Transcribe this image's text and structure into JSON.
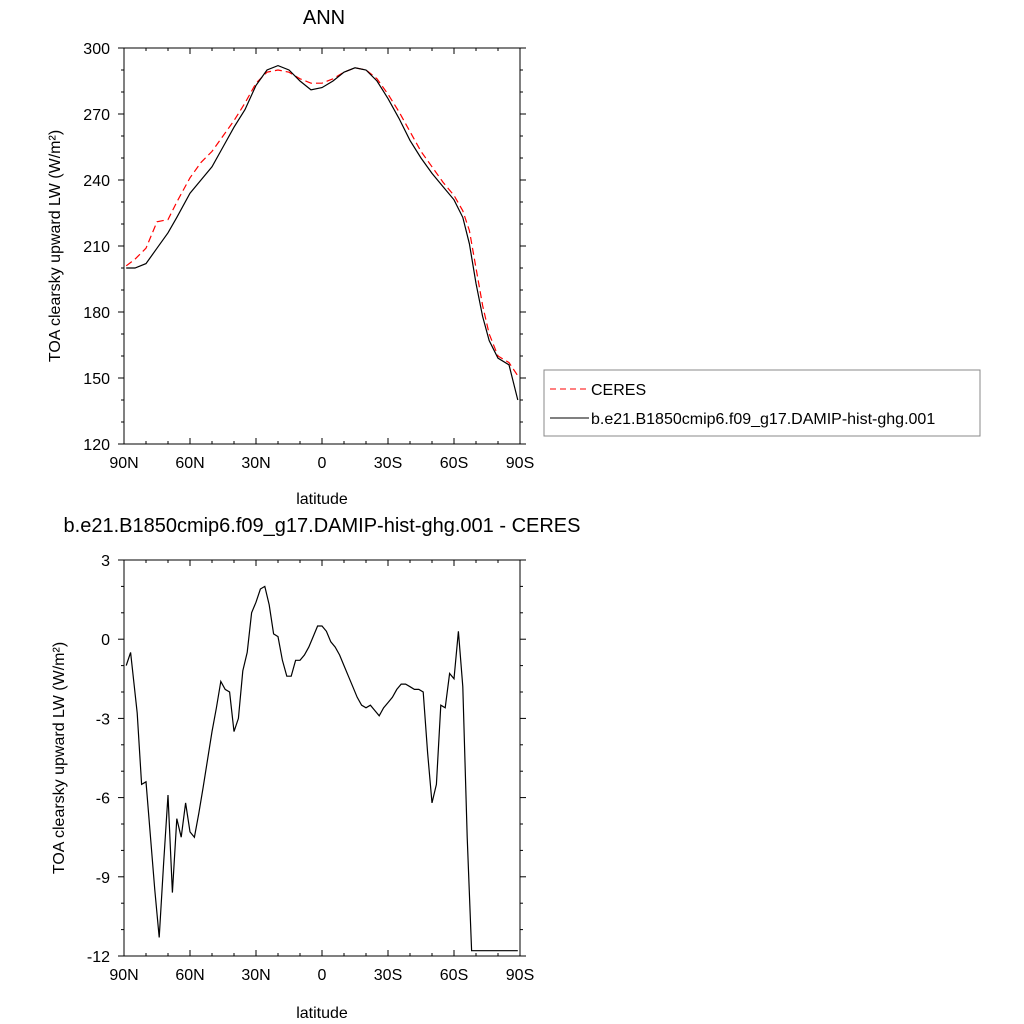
{
  "chart_data": [
    {
      "type": "line",
      "title": "ANN",
      "xlabel": "latitude",
      "ylabel": "TOA clearsky upward LW (W/m²)",
      "xlim": [
        90,
        -90
      ],
      "ylim": [
        120,
        300
      ],
      "xticks": [
        90,
        60,
        30,
        0,
        -30,
        -60,
        -90
      ],
      "xticklabels": [
        "90N",
        "60N",
        "30N",
        "0",
        "30S",
        "60S",
        "90S"
      ],
      "yticks": [
        120,
        150,
        180,
        210,
        240,
        270,
        300
      ],
      "yticklabels": [
        "120",
        "150",
        "180",
        "210",
        "240",
        "270",
        "300"
      ],
      "legend": {
        "placement": "right",
        "entries": [
          "CERES",
          "b.e21.B1850cmip6.f09_g17.DAMIP-hist-ghg.001"
        ]
      },
      "series": [
        {
          "name": "CERES",
          "color": "#ff0000",
          "style": "dashed",
          "x": [
            89,
            85,
            80,
            75,
            70,
            66,
            60,
            55,
            50,
            45,
            40,
            35,
            30,
            25,
            20,
            15,
            10,
            5,
            0,
            -5,
            -10,
            -15,
            -20,
            -25,
            -30,
            -35,
            -40,
            -45,
            -50,
            -55,
            -60,
            -64,
            -67,
            -70,
            -73,
            -76,
            -80,
            -85,
            -89
          ],
          "y": [
            201,
            204,
            209,
            221,
            222,
            230,
            241,
            248,
            253,
            260,
            267,
            275,
            284,
            289,
            290,
            289,
            286,
            284,
            284,
            286,
            289,
            291,
            290,
            286,
            279,
            271,
            262,
            253,
            246,
            239,
            233,
            226,
            217,
            200,
            183,
            170,
            160,
            157,
            151
          ]
        },
        {
          "name": "b.e21.B1850cmip6.f09_g17.DAMIP-hist-ghg.001",
          "color": "#000000",
          "style": "solid",
          "x": [
            89,
            85,
            80,
            75,
            70,
            66,
            60,
            55,
            50,
            45,
            40,
            35,
            30,
            25,
            20,
            15,
            10,
            5,
            0,
            -5,
            -10,
            -15,
            -20,
            -25,
            -30,
            -35,
            -40,
            -45,
            -50,
            -55,
            -60,
            -64,
            -67,
            -70,
            -73,
            -76,
            -80,
            -85,
            -89
          ],
          "y": [
            200,
            200,
            202,
            209,
            216,
            223,
            234,
            240,
            246,
            255,
            264,
            272,
            283,
            290,
            292,
            290,
            285,
            281,
            282,
            285,
            289,
            291,
            290,
            285,
            277,
            268,
            258,
            250,
            243,
            237,
            231,
            223,
            211,
            193,
            178,
            167,
            159,
            156,
            140
          ]
        }
      ]
    },
    {
      "type": "line",
      "title": "b.e21.B1850cmip6.f09_g17.DAMIP-hist-ghg.001 - CERES",
      "xlabel": "latitude",
      "ylabel": "TOA clearsky upward LW (W/m²)",
      "xlim": [
        90,
        -90
      ],
      "ylim": [
        -12,
        3
      ],
      "xticks": [
        90,
        60,
        30,
        0,
        -30,
        -60,
        -90
      ],
      "xticklabels": [
        "90N",
        "60N",
        "30N",
        "0",
        "30S",
        "60S",
        "90S"
      ],
      "yticks": [
        -12,
        -9,
        -6,
        -3,
        0,
        3
      ],
      "yticklabels": [
        "-12",
        "-9",
        "-6",
        "-3",
        "0",
        "3"
      ],
      "series": [
        {
          "color": "#000000",
          "style": "solid",
          "x": [
            89,
            87,
            84,
            82,
            80,
            76,
            74,
            72,
            70,
            68,
            66,
            64,
            62,
            60,
            58,
            56,
            54,
            50,
            48,
            46,
            44,
            42,
            40,
            38,
            36,
            34,
            32,
            30,
            28,
            26,
            24,
            22,
            20,
            18,
            16,
            14,
            12,
            10,
            8,
            6,
            4,
            2,
            0,
            -2,
            -4,
            -6,
            -8,
            -10,
            -12,
            -14,
            -16,
            -18,
            -20,
            -22,
            -24,
            -26,
            -28,
            -30,
            -32,
            -34,
            -36,
            -38,
            -40,
            -42,
            -44,
            -46,
            -48,
            -50,
            -52,
            -54,
            -56,
            -58,
            -60,
            -62,
            -64,
            -66,
            -68,
            -70,
            -72,
            -74,
            -76,
            -78,
            -80,
            -82,
            -84,
            -86,
            -88,
            -89
          ],
          "y": [
            -1.0,
            -0.5,
            -2.8,
            -5.5,
            -5.4,
            -9.5,
            -11.3,
            -8.5,
            -5.9,
            -9.6,
            -6.8,
            -7.5,
            -6.2,
            -7.3,
            -7.5,
            -6.6,
            -5.6,
            -3.5,
            -2.6,
            -1.6,
            -1.9,
            -2.0,
            -3.5,
            -3.0,
            -1.2,
            -0.5,
            1.0,
            1.4,
            1.9,
            2.0,
            1.3,
            0.2,
            0.1,
            -0.8,
            -1.4,
            -1.4,
            -0.8,
            -0.8,
            -0.6,
            -0.3,
            0.1,
            0.5,
            0.5,
            0.3,
            -0.1,
            -0.3,
            -0.6,
            -1.0,
            -1.4,
            -1.8,
            -2.2,
            -2.5,
            -2.6,
            -2.5,
            -2.7,
            -2.9,
            -2.6,
            -2.4,
            -2.2,
            -1.9,
            -1.7,
            -1.7,
            -1.8,
            -1.9,
            -1.9,
            -2.0,
            -4.3,
            -6.2,
            -5.5,
            -2.5,
            -2.6,
            -1.3,
            -1.5,
            0.3,
            -1.8,
            -7.5,
            -11.8,
            -11.8,
            -11.8,
            -11.8,
            -11.8,
            -11.8,
            -11.8,
            -11.8,
            -11.8,
            -11.8,
            -11.8,
            -11.8
          ]
        }
      ]
    }
  ]
}
